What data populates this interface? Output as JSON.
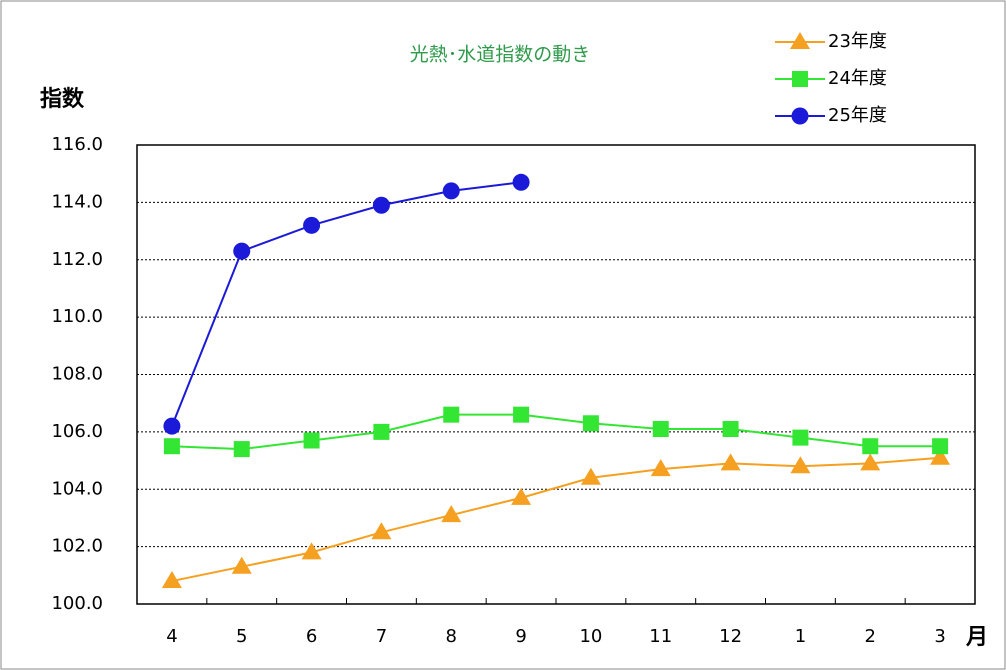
{
  "chart_data": {
    "type": "line",
    "title": "光熱･水道指数の動き",
    "y_label": "指数",
    "x_label": "月",
    "categories": [
      "4",
      "5",
      "6",
      "7",
      "8",
      "9",
      "10",
      "11",
      "12",
      "1",
      "2",
      "3"
    ],
    "series": [
      {
        "name": "23年度",
        "color": "#f5a020",
        "marker": "triangle",
        "values": [
          100.8,
          101.3,
          101.8,
          102.5,
          103.1,
          103.7,
          104.4,
          104.7,
          104.9,
          104.8,
          104.9,
          105.1
        ]
      },
      {
        "name": "24年度",
        "color": "#33e633",
        "marker": "square",
        "values": [
          105.5,
          105.4,
          105.7,
          106.0,
          106.6,
          106.6,
          106.3,
          106.1,
          106.1,
          105.8,
          105.5,
          105.5
        ]
      },
      {
        "name": "25年度",
        "color": "#1a1ad8",
        "marker": "circle",
        "values": [
          106.2,
          112.3,
          113.2,
          113.9,
          114.4,
          114.7,
          null,
          null,
          null,
          null,
          null,
          null
        ]
      }
    ],
    "ylim": [
      100,
      116
    ],
    "yticks": [
      {
        "value": 100,
        "label": "100.0"
      },
      {
        "value": 102,
        "label": "102.0"
      },
      {
        "value": 104,
        "label": "104.0"
      },
      {
        "value": 106,
        "label": "106.0"
      },
      {
        "value": 108,
        "label": "108.0"
      },
      {
        "value": 110,
        "label": "110.0"
      },
      {
        "value": 112,
        "label": "112.0"
      },
      {
        "value": 114,
        "label": "114.0"
      },
      {
        "value": 116,
        "label": "116.0"
      }
    ],
    "grid": true,
    "legend": "top-right"
  }
}
